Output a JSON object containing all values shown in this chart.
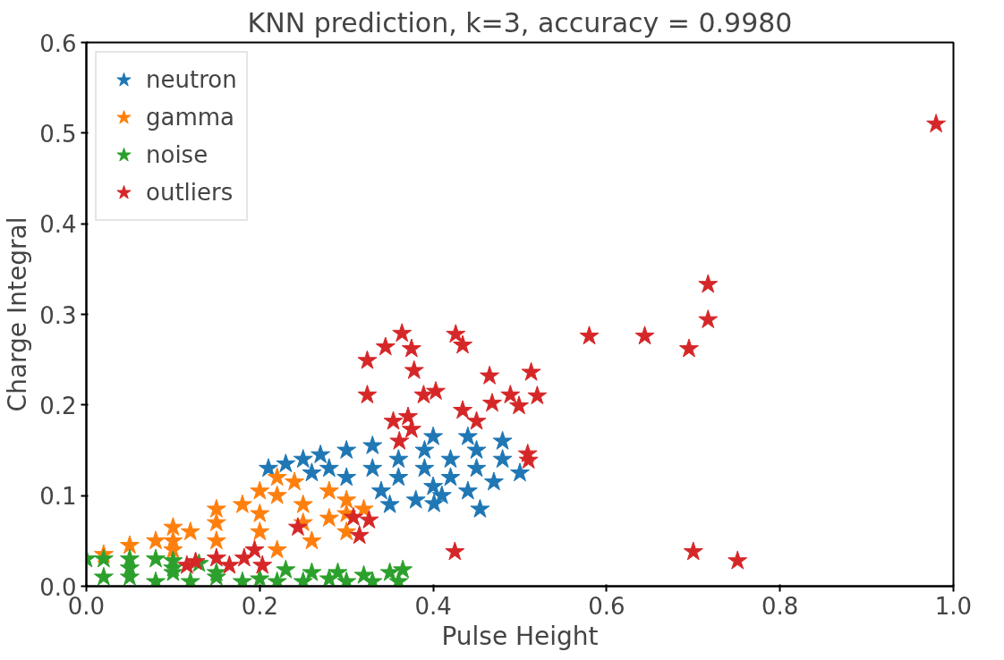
{
  "chart_data": {
    "type": "scatter",
    "title": "KNN prediction, k=3, accuracy = 0.9980",
    "xlabel": "Pulse Height",
    "ylabel": "Charge Integral",
    "xlim": [
      0,
      1.0
    ],
    "ylim": [
      0,
      0.6
    ],
    "xticks": [
      {
        "value": 0,
        "label": "0.0"
      },
      0.2,
      0.4,
      0.6,
      0.8,
      {
        "value": 1.0,
        "label": "1.0"
      }
    ],
    "yticks": [
      {
        "value": 0,
        "label": "0.0"
      },
      0.1,
      0.2,
      0.3,
      0.4,
      0.5,
      0.6
    ],
    "marker": "star",
    "grid": false,
    "legend": "top left",
    "series": [
      {
        "name": "neutron",
        "color": "#1f77b4",
        "x": [
          0.21,
          0.23,
          0.25,
          0.27,
          0.3,
          0.33,
          0.4,
          0.44,
          0.48,
          0.5,
          0.47,
          0.44,
          0.41,
          0.38,
          0.35,
          0.3,
          0.33,
          0.36,
          0.36,
          0.39,
          0.39,
          0.42,
          0.42,
          0.45,
          0.45,
          0.48,
          0.4,
          0.34,
          0.28,
          0.26,
          0.401,
          0.454
        ],
        "values": [
          0.13,
          0.135,
          0.14,
          0.145,
          0.15,
          0.155,
          0.165,
          0.165,
          0.16,
          0.125,
          0.115,
          0.105,
          0.1,
          0.095,
          0.09,
          0.12,
          0.13,
          0.12,
          0.14,
          0.13,
          0.15,
          0.12,
          0.14,
          0.13,
          0.15,
          0.14,
          0.11,
          0.105,
          0.13,
          0.125,
          0.091,
          0.085
        ]
      },
      {
        "name": "gamma",
        "color": "#ff7f0e",
        "x": [
          0.05,
          0.1,
          0.15,
          0.2,
          0.22,
          0.24,
          0.28,
          0.3,
          0.32,
          0.3,
          0.26,
          0.22,
          0.28,
          0.1,
          0.1,
          0.15,
          0.15,
          0.2,
          0.2,
          0.25,
          0.25,
          0.18,
          0.12,
          0.08,
          0.02,
          0.22,
          0.3
        ],
        "values": [
          0.045,
          0.065,
          0.085,
          0.105,
          0.12,
          0.115,
          0.105,
          0.095,
          0.085,
          0.06,
          0.05,
          0.04,
          0.075,
          0.04,
          0.05,
          0.05,
          0.07,
          0.06,
          0.08,
          0.07,
          0.09,
          0.09,
          0.06,
          0.05,
          0.035,
          0.1,
          0.08
        ]
      },
      {
        "name": "noise",
        "color": "#2ca02c",
        "x": [
          0.0,
          0.02,
          0.05,
          0.08,
          0.1,
          0.13,
          0.23,
          0.26,
          0.29,
          0.32,
          0.35,
          0.365,
          0.02,
          0.05,
          0.08,
          0.1,
          0.12,
          0.15,
          0.18,
          0.2,
          0.22,
          0.25,
          0.28,
          0.3,
          0.33,
          0.36,
          0.05,
          0.1,
          0.15
        ],
        "values": [
          0.03,
          0.03,
          0.03,
          0.03,
          0.028,
          0.025,
          0.018,
          0.015,
          0.015,
          0.012,
          0.015,
          0.018,
          0.01,
          0.01,
          0.005,
          0.015,
          0.005,
          0.01,
          0.005,
          0.008,
          0.005,
          0.005,
          0.008,
          0.005,
          0.005,
          0.005,
          0.02,
          0.02,
          0.015
        ]
      },
      {
        "name": "outliers",
        "color": "#d62728",
        "x": [
          0.98,
          0.58,
          0.644,
          0.695,
          0.717,
          0.717,
          0.7,
          0.751,
          0.425,
          0.52,
          0.513,
          0.509,
          0.51,
          0.499,
          0.489,
          0.364,
          0.345,
          0.324,
          0.375,
          0.378,
          0.426,
          0.434,
          0.324,
          0.389,
          0.403,
          0.465,
          0.468,
          0.45,
          0.434,
          0.354,
          0.371,
          0.361,
          0.375,
          0.308,
          0.326,
          0.315,
          0.244,
          0.116,
          0.126,
          0.15,
          0.165,
          0.182,
          0.194,
          0.203
        ],
        "values": [
          0.51,
          0.276,
          0.276,
          0.262,
          0.333,
          0.294,
          0.038,
          0.028,
          0.038,
          0.21,
          0.236,
          0.146,
          0.139,
          0.199,
          0.211,
          0.279,
          0.264,
          0.249,
          0.262,
          0.238,
          0.278,
          0.266,
          0.211,
          0.211,
          0.215,
          0.232,
          0.202,
          0.182,
          0.194,
          0.182,
          0.187,
          0.16,
          0.173,
          0.076,
          0.073,
          0.056,
          0.065,
          0.023,
          0.027,
          0.031,
          0.023,
          0.031,
          0.04,
          0.023
        ]
      }
    ]
  }
}
